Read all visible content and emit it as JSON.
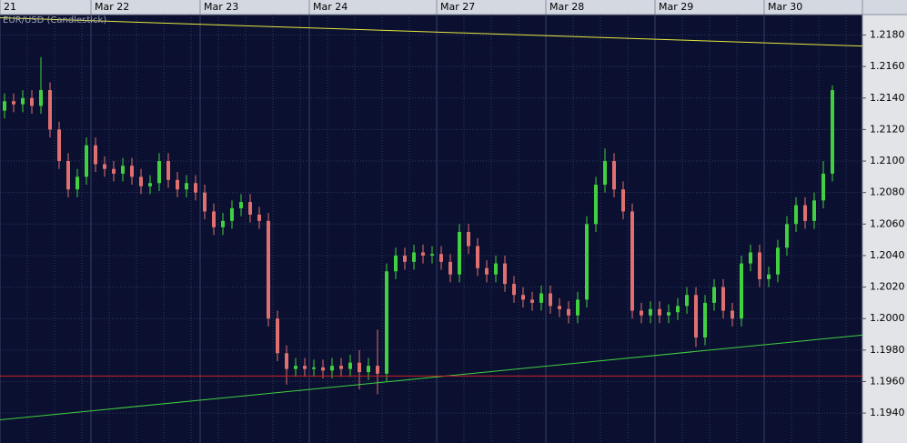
{
  "chart_data": {
    "type": "candlestick",
    "title": "EUR/USD (Candlestick)",
    "categories": [
      "21",
      null,
      null,
      null,
      null,
      null,
      null,
      null,
      null,
      null,
      "Mar 22",
      null,
      null,
      null,
      null,
      null,
      null,
      null,
      null,
      null,
      null,
      null,
      "Mar 23",
      null,
      null,
      null,
      null,
      null,
      null,
      null,
      null,
      null,
      null,
      null,
      "Mar 24",
      null,
      null,
      null,
      null,
      null,
      null,
      null,
      null,
      null,
      null,
      null,
      null,
      null,
      "Mar 27",
      null,
      null,
      null,
      null,
      null,
      null,
      null,
      null,
      null,
      null,
      null,
      "Mar 28",
      null,
      null,
      null,
      null,
      null,
      null,
      null,
      null,
      null,
      null,
      null,
      "Mar 29",
      null,
      null,
      null,
      null,
      null,
      null,
      null,
      null,
      null,
      null,
      null,
      "Mar 30",
      null,
      null,
      null,
      null,
      null,
      null,
      null
    ],
    "open": [
      1.2132,
      1.2138,
      1.2136,
      1.214,
      1.2135,
      1.2145,
      1.212,
      1.21,
      1.2082,
      1.209,
      1.211,
      1.2098,
      1.2095,
      1.2092,
      1.2097,
      1.209,
      1.2084,
      1.2086,
      1.21,
      1.2088,
      1.2082,
      1.2086,
      1.208,
      1.2068,
      1.2058,
      1.2062,
      1.207,
      1.2074,
      1.2066,
      1.2062,
      1.2,
      1.1978,
      1.1968,
      1.197,
      1.1968,
      1.1969,
      1.1967,
      1.197,
      1.1968,
      1.1972,
      1.1966,
      1.197,
      1.1965,
      1.203,
      1.204,
      1.2036,
      1.2042,
      1.204,
      1.2041,
      1.2036,
      1.2028,
      1.2055,
      1.2046,
      1.2032,
      1.2028,
      1.2035,
      1.2022,
      1.2015,
      1.2012,
      1.201,
      1.2016,
      1.2008,
      1.2006,
      1.2002,
      1.2012,
      1.206,
      1.2085,
      1.21,
      1.2082,
      1.2068,
      1.2005,
      1.2002,
      1.2006,
      1.2002,
      1.2004,
      1.2008,
      1.2015,
      1.1988,
      1.201,
      1.202,
      1.2005,
      1.2,
      1.2035,
      1.2042,
      1.2025,
      1.2028,
      1.2045,
      1.206,
      1.2072,
      1.2062,
      1.2075,
      1.2092
    ],
    "high": [
      1.2143,
      1.2143,
      1.2145,
      1.2145,
      1.2166,
      1.215,
      1.2125,
      1.2105,
      1.2095,
      1.2115,
      1.2115,
      1.2103,
      1.21,
      1.2102,
      1.2102,
      1.2095,
      1.2091,
      1.2105,
      1.2105,
      1.2093,
      1.2091,
      1.2091,
      1.2085,
      1.2073,
      1.2067,
      1.2075,
      1.2079,
      1.2079,
      1.2071,
      1.2067,
      1.2005,
      1.1983,
      1.1975,
      1.1975,
      1.1974,
      1.1974,
      1.1975,
      1.1975,
      1.1977,
      1.198,
      1.1975,
      1.1993,
      1.2035,
      1.2045,
      1.2045,
      1.2047,
      1.2047,
      1.2046,
      1.2046,
      1.2041,
      1.206,
      1.206,
      1.2051,
      1.2037,
      1.204,
      1.204,
      1.2027,
      1.202,
      1.2017,
      1.2021,
      1.2021,
      1.2013,
      1.2011,
      1.2017,
      1.2065,
      1.209,
      1.2108,
      1.2105,
      1.2087,
      1.2073,
      1.201,
      1.2011,
      1.2011,
      1.2009,
      1.2013,
      1.202,
      1.202,
      1.2015,
      1.2025,
      1.2025,
      1.201,
      1.204,
      1.2047,
      1.2047,
      1.2033,
      1.205,
      1.2065,
      1.2077,
      1.2077,
      1.208,
      1.21,
      1.2148
    ],
    "low": [
      1.2127,
      1.2131,
      1.2131,
      1.213,
      1.213,
      1.2115,
      1.2095,
      1.2077,
      1.2077,
      1.2085,
      1.2093,
      1.209,
      1.2087,
      1.2087,
      1.2085,
      1.2079,
      1.2079,
      1.2081,
      1.2083,
      1.2077,
      1.2077,
      1.2075,
      1.2063,
      1.2053,
      1.2053,
      1.2057,
      1.2065,
      1.2061,
      1.2057,
      1.1995,
      1.1973,
      1.1958,
      1.1963,
      1.1963,
      1.1963,
      1.1962,
      1.1962,
      1.1963,
      1.1963,
      1.1955,
      1.1961,
      1.1952,
      1.196,
      1.2025,
      1.2031,
      1.2031,
      1.2035,
      1.2035,
      1.2031,
      1.2023,
      1.2023,
      1.2041,
      1.2027,
      1.2023,
      1.2023,
      1.2017,
      1.201,
      1.2007,
      1.2005,
      1.2005,
      1.2003,
      1.2001,
      1.1997,
      1.1997,
      1.2007,
      1.2055,
      1.208,
      1.2077,
      1.2063,
      1.2,
      1.1997,
      1.1997,
      1.1997,
      1.1997,
      1.1999,
      1.2003,
      1.1982,
      1.1983,
      1.2005,
      1.2,
      1.1995,
      1.1995,
      1.203,
      1.202,
      1.202,
      1.2023,
      1.204,
      1.2055,
      1.2057,
      1.2057,
      1.207,
      1.2087
    ],
    "close": [
      1.2138,
      1.2136,
      1.214,
      1.2135,
      1.2145,
      1.212,
      1.21,
      1.2082,
      1.209,
      1.211,
      1.2098,
      1.2095,
      1.2092,
      1.2097,
      1.209,
      1.2084,
      1.2086,
      1.21,
      1.2088,
      1.2082,
      1.2086,
      1.208,
      1.2068,
      1.2058,
      1.2062,
      1.207,
      1.2074,
      1.2066,
      1.2062,
      1.2,
      1.1978,
      1.1968,
      1.197,
      1.1968,
      1.1969,
      1.1967,
      1.197,
      1.1968,
      1.1972,
      1.1966,
      1.197,
      1.1965,
      1.203,
      1.204,
      1.2036,
      1.2042,
      1.204,
      1.2041,
      1.2036,
      1.2028,
      1.2055,
      1.2046,
      1.2032,
      1.2028,
      1.2035,
      1.2022,
      1.2015,
      1.2012,
      1.201,
      1.2016,
      1.2008,
      1.2006,
      1.2002,
      1.2012,
      1.206,
      1.2085,
      1.21,
      1.2082,
      1.2068,
      1.2005,
      1.2002,
      1.2006,
      1.2002,
      1.2004,
      1.2008,
      1.2015,
      1.1988,
      1.201,
      1.202,
      1.2005,
      1.2,
      1.2035,
      1.2042,
      1.2025,
      1.2028,
      1.2045,
      1.206,
      1.2072,
      1.2062,
      1.2075,
      1.2092,
      1.2145
    ],
    "up_color": "#40d040",
    "down_color": "#e07070",
    "lines": [
      {
        "color": "#e8e840",
        "x": [
          -0.5,
          94.3
        ],
        "values": [
          1.2191,
          1.2173
        ]
      },
      {
        "color": "#40d040",
        "x": [
          -0.5,
          94.3
        ],
        "values": [
          1.19357,
          1.19895
        ]
      },
      {
        "color": "#d02020",
        "x": [
          -0.5,
          94.3
        ],
        "values": [
          1.19635,
          1.19635
        ]
      }
    ],
    "xlim": [
      -0.5,
      94.3
    ],
    "ylim": [
      1.1921,
      1.2193
    ],
    "yticks": [
      {
        "value": 1.194,
        "label": "1.1940"
      },
      {
        "value": 1.196,
        "label": "1.1960"
      },
      {
        "value": 1.198,
        "label": "1.1980"
      },
      {
        "value": 1.2,
        "label": "1.2000"
      },
      {
        "value": 1.202,
        "label": "1.2020"
      },
      {
        "value": 1.204,
        "label": "1.2040"
      },
      {
        "value": 1.206,
        "label": "1.2060"
      },
      {
        "value": 1.208,
        "label": "1.2080"
      },
      {
        "value": 1.21,
        "label": "1.2100"
      },
      {
        "value": 1.212,
        "label": "1.2120"
      },
      {
        "value": 1.214,
        "label": "1.2140"
      },
      {
        "value": 1.216,
        "label": "1.2160"
      },
      {
        "value": 1.218,
        "label": "1.2180"
      }
    ],
    "grid": true
  }
}
